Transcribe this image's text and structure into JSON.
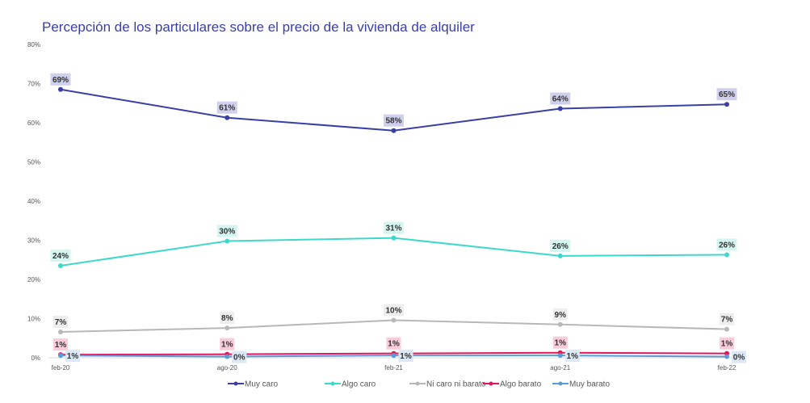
{
  "chart_data": {
    "type": "line",
    "title": "Percepción de los particulares sobre el precio de la vivienda de alquiler",
    "categories": [
      "feb-20",
      "ago-20",
      "feb-21",
      "ago-21",
      "feb-22"
    ],
    "ylim": [
      0,
      80
    ],
    "yticks": [
      "0%",
      "10%",
      "20%",
      "30%",
      "40%",
      "50%",
      "60%",
      "70%",
      "80%"
    ],
    "grid": false,
    "legend": "bottom",
    "series": [
      {
        "name": "Muy caro",
        "color": "#3a3fa8",
        "label_bg": "#cfd0ec",
        "values": [
          68.5,
          61.3,
          58.0,
          63.6,
          64.7
        ],
        "labels": [
          "69%",
          "61%",
          "58%",
          "64%",
          "65%"
        ],
        "label_pos": "above"
      },
      {
        "name": "Algo caro",
        "color": "#3dd9c8",
        "label_bg": "#d5f5f0",
        "values": [
          23.5,
          29.8,
          30.6,
          26.0,
          26.3
        ],
        "labels": [
          "24%",
          "30%",
          "31%",
          "26%",
          "26%"
        ],
        "label_pos": "above"
      },
      {
        "name": "Ni caro ni barato",
        "color": "#b8b8b8",
        "label_bg": "#eeeeee",
        "values": [
          6.6,
          7.6,
          9.6,
          8.5,
          7.3
        ],
        "labels": [
          "7%",
          "8%",
          "10%",
          "9%",
          "7%"
        ],
        "label_pos": "above"
      },
      {
        "name": "Algo barato",
        "color": "#e0185a",
        "label_bg": "#f8ccd9",
        "values": [
          0.8,
          0.9,
          1.1,
          1.3,
          1.1
        ],
        "labels": [
          "1%",
          "1%",
          "1%",
          "1%",
          "1%"
        ],
        "label_pos": "above"
      },
      {
        "name": "Muy barato",
        "color": "#5b9bd5",
        "label_bg": "#dce8f5",
        "values": [
          0.6,
          0.3,
          0.6,
          0.6,
          0.3
        ],
        "labels": [
          "1%",
          "0%",
          "1%",
          "1%",
          "0%"
        ],
        "label_pos": "right"
      }
    ]
  }
}
